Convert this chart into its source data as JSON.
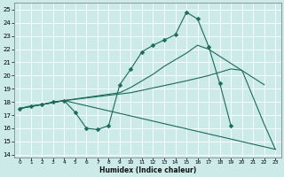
{
  "xlabel": "Humidex (Indice chaleur)",
  "bg_color": "#cceae8",
  "grid_color": "#ffffff",
  "line_color": "#1a6b5a",
  "xlim": [
    -0.5,
    23.5
  ],
  "ylim": [
    13.8,
    25.5
  ],
  "xticks": [
    0,
    1,
    2,
    3,
    4,
    5,
    6,
    7,
    8,
    9,
    10,
    11,
    12,
    13,
    14,
    15,
    16,
    17,
    18,
    19,
    20,
    21,
    22,
    23
  ],
  "yticks": [
    14,
    15,
    16,
    17,
    18,
    19,
    20,
    21,
    22,
    23,
    24,
    25
  ],
  "line1_x": [
    0,
    1,
    2,
    3,
    4,
    5,
    6,
    7,
    8,
    9,
    10,
    11,
    12,
    13,
    14,
    15,
    16,
    17,
    18,
    19
  ],
  "line1_y": [
    17.5,
    17.7,
    17.8,
    18.0,
    18.1,
    17.2,
    16.0,
    15.9,
    16.2,
    19.3,
    20.5,
    21.8,
    22.3,
    22.7,
    23.1,
    24.8,
    24.3,
    22.2,
    19.4,
    16.2
  ],
  "line2_x": [
    0,
    4,
    9,
    10,
    11,
    12,
    13,
    14,
    15,
    16,
    17,
    22
  ],
  "line2_y": [
    17.5,
    18.1,
    18.7,
    19.1,
    19.6,
    20.1,
    20.7,
    21.2,
    21.7,
    22.3,
    22.0,
    19.3
  ],
  "line3_x": [
    0,
    4,
    23
  ],
  "line3_y": [
    17.5,
    18.1,
    14.4
  ],
  "line4_x": [
    0,
    4,
    10,
    15,
    17,
    19,
    20,
    22,
    23
  ],
  "line4_y": [
    17.5,
    18.1,
    18.7,
    19.6,
    20.0,
    20.5,
    20.4,
    16.3,
    14.4
  ],
  "markersize": 2.5
}
